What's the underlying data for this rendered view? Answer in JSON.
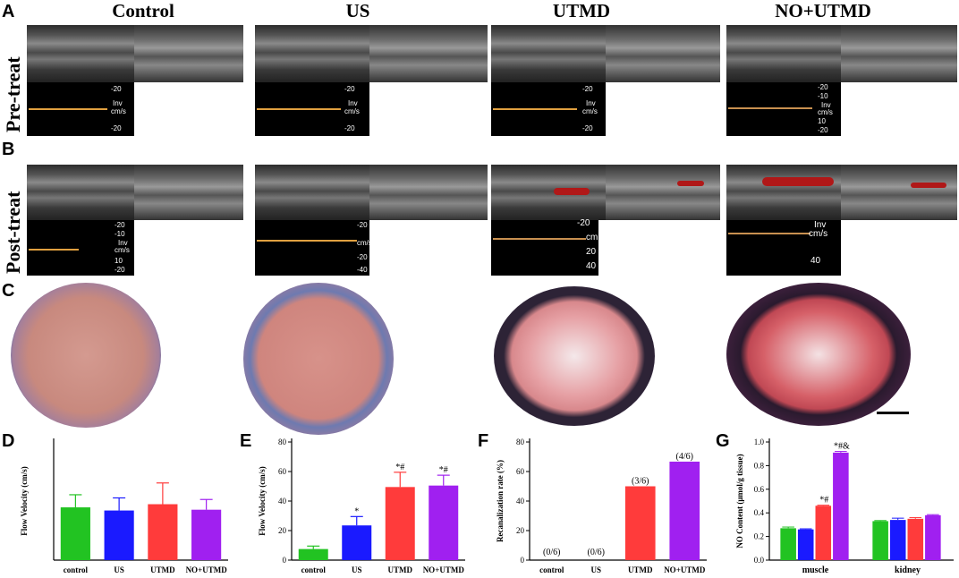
{
  "panels": {
    "A": "A",
    "B": "B",
    "C": "C",
    "D": "D",
    "E": "E",
    "F": "F",
    "G": "G"
  },
  "column_titles": [
    "Control",
    "US",
    "UTMD",
    "NO+UTMD"
  ],
  "row_labels": {
    "pre": "Pre-treat",
    "post": "Post-treat"
  },
  "doppler_scales": {
    "a_control": [
      "-20",
      "Inv",
      "cm/s",
      "-20"
    ],
    "a_us": [
      "-20",
      "Inv",
      "cm/s",
      "-20"
    ],
    "a_utmd": [
      "-20",
      "Inv",
      "cm/s",
      "-20"
    ],
    "a_noutmd": [
      "-20",
      "-10",
      "Inv",
      "cm/s",
      "10",
      "-20"
    ],
    "b_control": [
      "-20",
      "-10",
      "Inv",
      "cm/s",
      "10",
      "-20"
    ],
    "b_us": [
      "-20",
      "cm/s",
      "-20",
      "-40"
    ],
    "b_utmd": [
      "-20",
      "cm",
      "20",
      "40"
    ],
    "b_noutmd": [
      "Inv",
      "cm/s",
      "40"
    ]
  },
  "colors": {
    "control": "#22c322",
    "US": "#1a1aff",
    "UTMD": "#ff3b3b",
    "NO+UTMD": "#a020f0",
    "doppler_baseline": "#e0a040"
  },
  "chart_data": [
    {
      "type": "bar",
      "panel": "D",
      "categories": [
        "control",
        "US",
        "UTMD",
        "NO+UTMD"
      ],
      "values": [
        6.7,
        6.3,
        7.1,
        6.4
      ],
      "errors": [
        1.6,
        1.6,
        2.7,
        1.3
      ],
      "ylabel": "Flow Velocity (cm/s)",
      "ylim": [
        0,
        15
      ],
      "yticks": []
    },
    {
      "type": "bar",
      "panel": "E",
      "categories": [
        "control",
        "US",
        "UTMD",
        "NO+UTMD"
      ],
      "values": [
        7.5,
        23.5,
        49.5,
        50.5
      ],
      "errors": [
        2.0,
        6.0,
        10.0,
        7.0
      ],
      "annotations": [
        "",
        "*",
        "*#",
        "*#"
      ],
      "ylabel": "Flow Velocity (cm/s)",
      "ylim": [
        0,
        80
      ],
      "yticks": [
        "0",
        "20",
        "40",
        "60",
        "80"
      ]
    },
    {
      "type": "bar",
      "panel": "F",
      "categories": [
        "control",
        "US",
        "UTMD",
        "NO+UTMD"
      ],
      "values": [
        0,
        0,
        50,
        66.7
      ],
      "annotations": [
        "(0/6)",
        "(0/6)",
        "(3/6)",
        "(4/6)"
      ],
      "ylabel": "Recanalization rate (%)",
      "ylim": [
        0,
        80
      ],
      "yticks": [
        "0",
        "20",
        "40",
        "60",
        "80"
      ]
    },
    {
      "type": "bar",
      "panel": "G",
      "categories": [
        "muscle",
        "kidney"
      ],
      "series": [
        {
          "values": [
            0.27,
            0.33
          ],
          "errors": [
            0.01,
            0.005
          ]
        },
        {
          "values": [
            0.26,
            0.34
          ],
          "errors": [
            0.005,
            0.015
          ]
        },
        {
          "values": [
            0.46,
            0.35
          ],
          "errors": [
            0.005,
            0.01
          ]
        },
        {
          "values": [
            0.91,
            0.38
          ],
          "errors": [
            0.01,
            0.005
          ]
        }
      ],
      "annotations": [
        "",
        "",
        "*#",
        "*#&"
      ],
      "ylabel": "NO Content (μmol/g tissue)",
      "ylim": [
        0,
        1.0
      ],
      "yticks": [
        "0.0",
        "0.2",
        "0.4",
        "0.6",
        "0.8",
        "1.0"
      ]
    }
  ]
}
